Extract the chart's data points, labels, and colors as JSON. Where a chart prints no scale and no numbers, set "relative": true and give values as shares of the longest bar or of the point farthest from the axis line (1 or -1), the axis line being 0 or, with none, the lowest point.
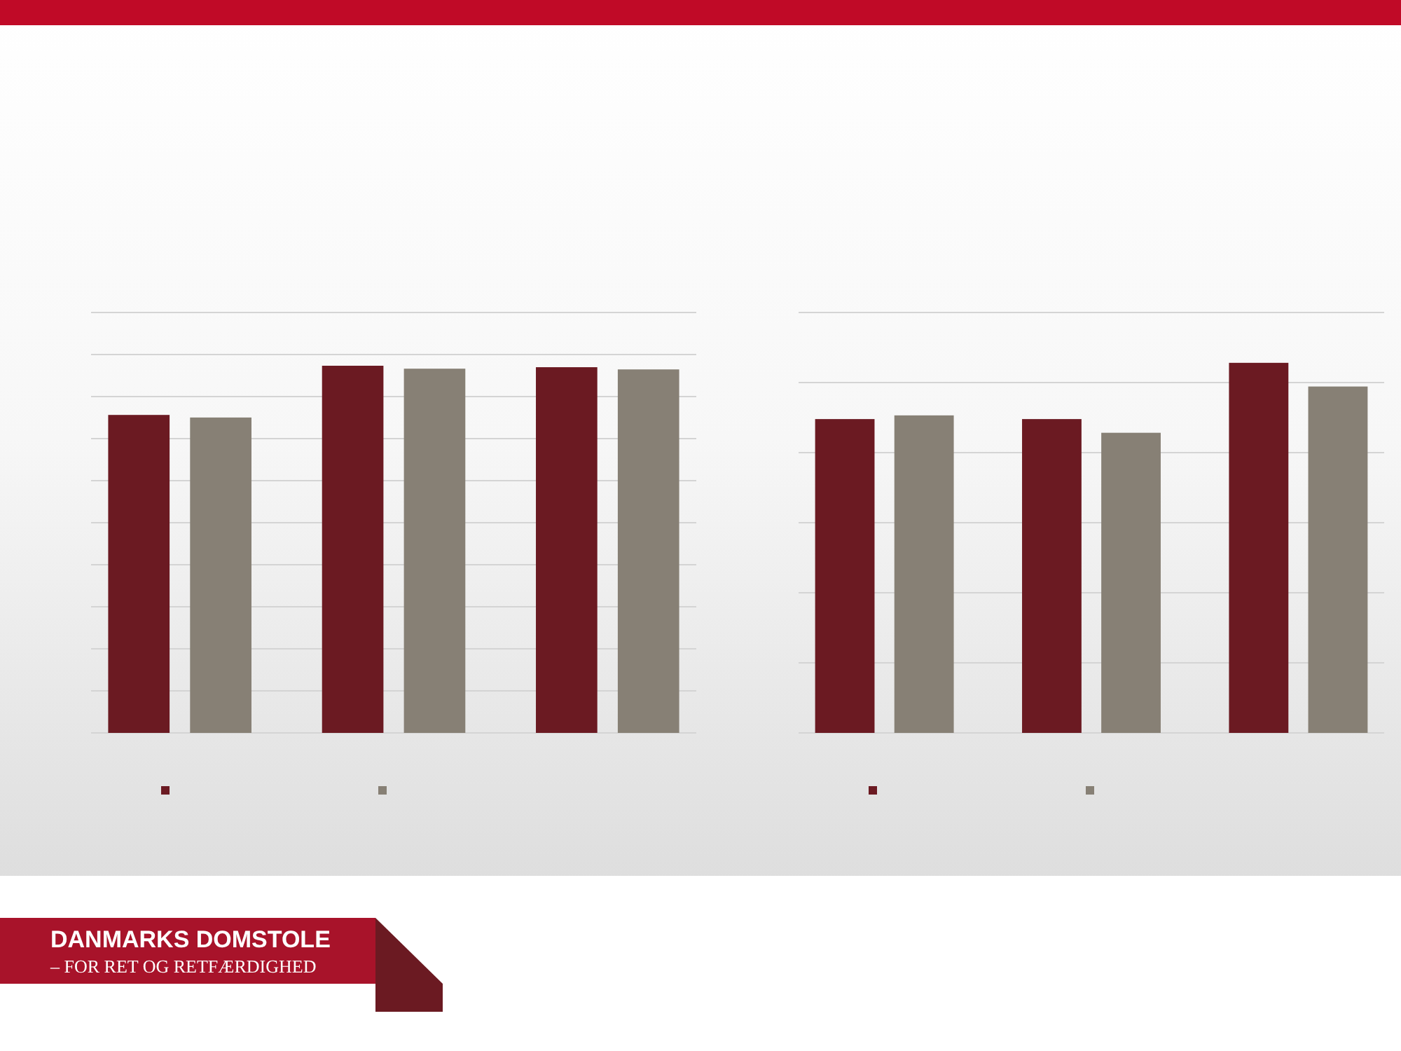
{
  "chart_data": [
    {
      "type": "bar",
      "relative": true,
      "categories": [
        null,
        null,
        null
      ],
      "grid": true,
      "annotations": [
        "DANMARKS DOMSTOLE",
        "– FOR RET OG RETFÆRDIGHED"
      ],
      "series": [
        {
          "color": "#6b1a22",
          "values": [
            0.866,
            1,
            0.996
          ]
        },
        {
          "color": "#878075",
          "values": [
            0.859,
            0.992,
            0.99
          ]
        }
      ]
    },
    {
      "type": "bar",
      "relative": true,
      "categories": [
        null,
        null,
        null
      ],
      "grid": true,
      "series": [
        {
          "color": "#6b1a22",
          "values": [
            0.848,
            0.848,
            1
          ]
        },
        {
          "color": "#878075",
          "values": [
            0.858,
            0.811,
            0.936
          ]
        }
      ]
    }
  ]
}
